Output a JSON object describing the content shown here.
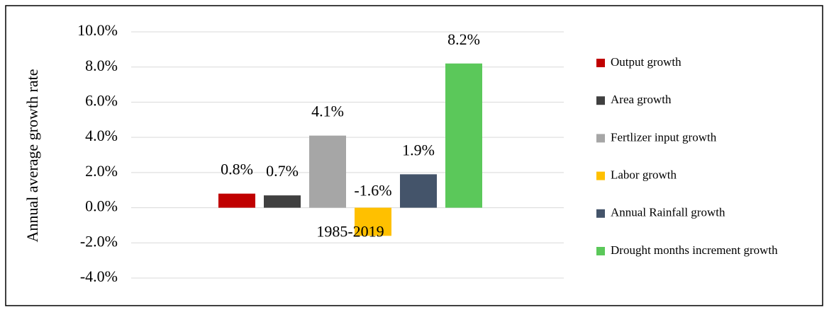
{
  "chart_data": {
    "type": "bar",
    "y_label": "Annual average growth rate",
    "categories": [
      "1985-2019"
    ],
    "series": [
      {
        "name": "Output growth",
        "color": "#c00000",
        "values": [
          0.8
        ],
        "value_labels": [
          "0.8%"
        ]
      },
      {
        "name": "Area growth",
        "color": "#404040",
        "values": [
          0.7
        ],
        "value_labels": [
          "0.7%"
        ]
      },
      {
        "name": "Fertlizer input growth",
        "color": "#a6a6a6",
        "values": [
          4.1
        ],
        "value_labels": [
          "4.1%"
        ]
      },
      {
        "name": "Labor growth",
        "color": "#ffc000",
        "values": [
          -1.6
        ],
        "value_labels": [
          "-1.6%"
        ]
      },
      {
        "name": "Annual Rainfall growth",
        "color": "#44546a",
        "values": [
          1.9
        ],
        "value_labels": [
          "1.9%"
        ]
      },
      {
        "name": "Drought months increment growth",
        "color": "#5bc85a",
        "values": [
          8.2
        ],
        "value_labels": [
          "8.2%"
        ]
      }
    ],
    "ylim": [
      -4,
      10
    ],
    "yticks": [
      {
        "value": -4,
        "label": "-4.0%"
      },
      {
        "value": -2,
        "label": "-2.0%"
      },
      {
        "value": 0,
        "label": "0.0%"
      },
      {
        "value": 2,
        "label": "2.0%"
      },
      {
        "value": 4,
        "label": "4.0%"
      },
      {
        "value": 6,
        "label": "6.0%"
      },
      {
        "value": 8,
        "label": "8.0%"
      },
      {
        "value": 10,
        "label": "10.0%"
      }
    ],
    "grid": true,
    "legend": "right"
  }
}
